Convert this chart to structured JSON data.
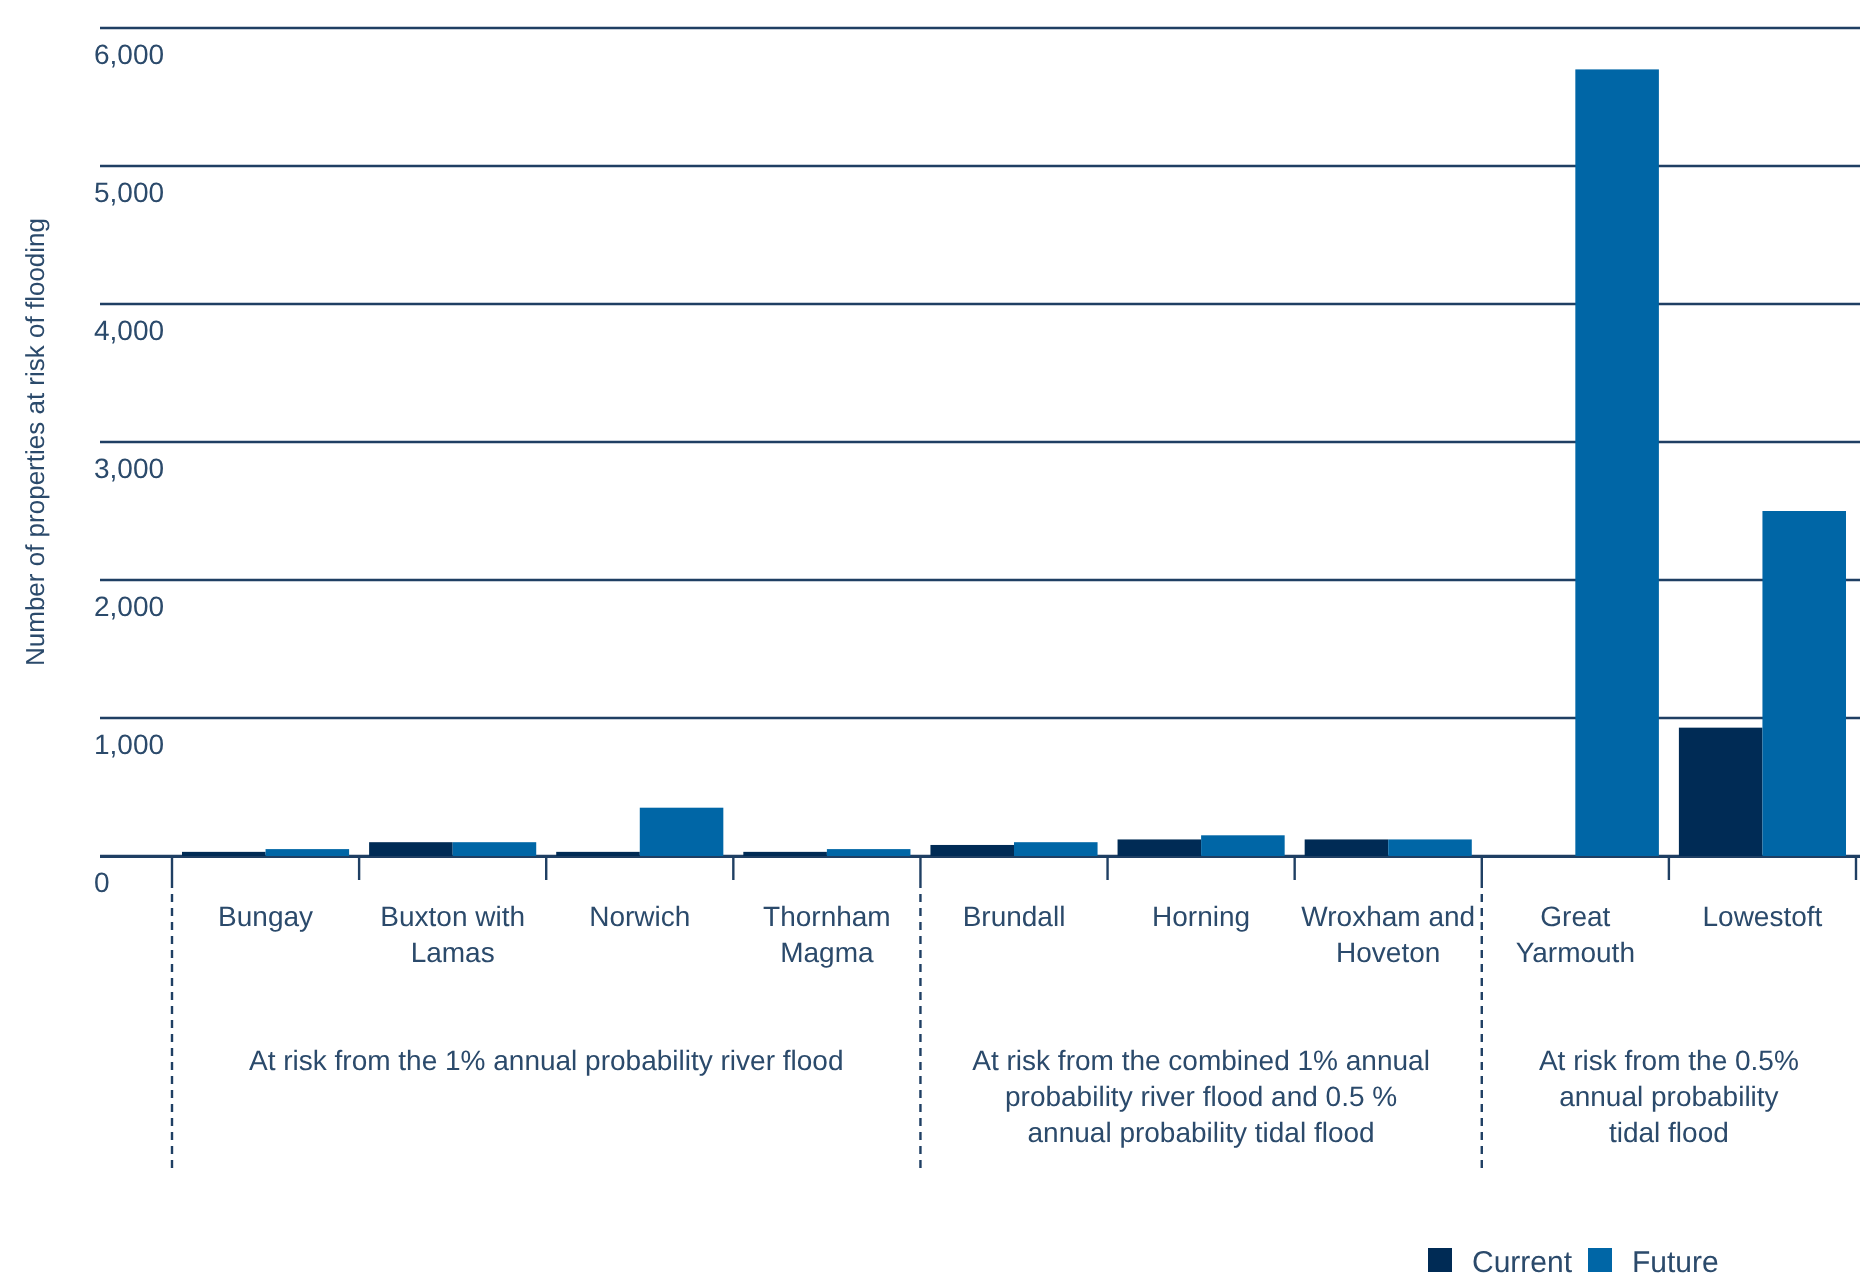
{
  "chart_data": {
    "type": "bar",
    "ylabel": "Number of properties at risk of flooding",
    "categories": [
      "Bungay",
      "Buxton with Lamas",
      "Norwich",
      "Thornham Magma",
      "Brundall",
      "Horning",
      "Wroxham and Hoveton",
      "Great Yarmouth",
      "Lowestoft"
    ],
    "series": [
      {
        "name": "Current",
        "color": "#002b55",
        "values": [
          30,
          100,
          30,
          30,
          80,
          120,
          120,
          0,
          930
        ]
      },
      {
        "name": "Future",
        "color": "#0066a6",
        "values": [
          50,
          100,
          350,
          50,
          100,
          150,
          120,
          5700,
          2500
        ]
      }
    ],
    "ylim": [
      0,
      6000
    ],
    "yticks": [
      {
        "value": 0,
        "label": "0"
      },
      {
        "value": 1000,
        "label": "1,000"
      },
      {
        "value": 2000,
        "label": "2,000"
      },
      {
        "value": 3000,
        "label": "3,000"
      },
      {
        "value": 4000,
        "label": "4,000"
      },
      {
        "value": 5000,
        "label": "5,000"
      },
      {
        "value": 6000,
        "label": "6,000"
      }
    ],
    "grid": "y",
    "legend": "bottom right",
    "annotations": [
      "At risk from the 1% annual probability river flood",
      "At risk from the combined 1% annual probability river flood and 0.5 % annual probability tidal flood",
      "At risk from the 0.5% annual probability tidal flood"
    ]
  }
}
